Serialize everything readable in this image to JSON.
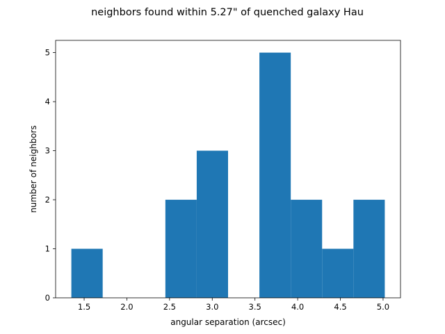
{
  "chart_data": {
    "type": "bar",
    "title": "neighbors found within 5.27\" of quenched galaxy Hau",
    "xlabel": "angular separation (arcsec)",
    "ylabel": "number of neighbors",
    "bin_edges": [
      1.35,
      1.717,
      2.084,
      2.451,
      2.818,
      3.185,
      3.552,
      3.919,
      4.286,
      4.653,
      5.02
    ],
    "values": [
      1,
      0,
      0,
      2,
      3,
      0,
      5,
      2,
      1,
      2
    ],
    "xlim": [
      1.166,
      5.204
    ],
    "ylim": [
      0,
      5.25
    ],
    "xticks": [
      1.5,
      2.0,
      2.5,
      3.0,
      3.5,
      4.0,
      4.5,
      5.0
    ],
    "xtick_labels": [
      "1.5",
      "2.0",
      "2.5",
      "3.0",
      "3.5",
      "4.0",
      "4.5",
      "5.0"
    ],
    "yticks": [
      0,
      1,
      2,
      3,
      4,
      5
    ],
    "ytick_labels": [
      "0",
      "1",
      "2",
      "3",
      "4",
      "5"
    ],
    "grid": false,
    "legend": "none",
    "bar_color": "#1f77b4"
  }
}
